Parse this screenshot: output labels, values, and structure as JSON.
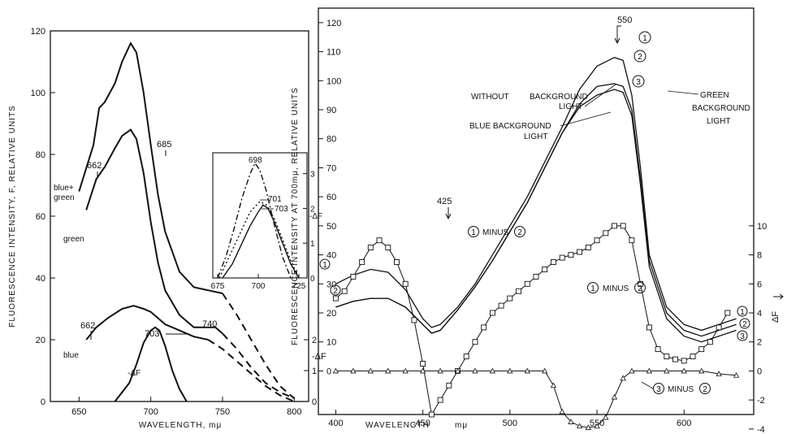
{
  "chart_data": [
    {
      "type": "line",
      "xlabel": "WAVELENGTH, mμ",
      "ylabel": "FLUORESCENCE INTENSITY, F, RELATIVE UNITS",
      "y2label": "-ΔF",
      "xlim": [
        630,
        810
      ],
      "ylim": [
        0,
        120
      ],
      "xticks": [
        650,
        700,
        750,
        800
      ],
      "yticks": [
        0,
        20,
        40,
        60,
        80,
        100,
        120
      ],
      "y2ticks": [
        0,
        1,
        2
      ],
      "series": [
        {
          "name": "blue+green",
          "style": "solid",
          "x": [
            650,
            660,
            664,
            668,
            675,
            680,
            686,
            690,
            695,
            700,
            705,
            710,
            720,
            730,
            740,
            750
          ],
          "y": [
            68,
            83,
            95,
            97,
            103,
            110,
            116,
            113,
            100,
            83,
            67,
            55,
            42,
            37,
            36,
            35
          ]
        },
        {
          "name": "blue+green",
          "style": "dashed",
          "x": [
            750,
            760,
            770,
            780,
            790,
            800
          ],
          "y": [
            35,
            28,
            20,
            12,
            5,
            1
          ]
        },
        {
          "name": "green",
          "style": "solid",
          "x": [
            655,
            662,
            668,
            675,
            680,
            686,
            690,
            695,
            700,
            705,
            710,
            720,
            730,
            740,
            745,
            750
          ],
          "y": [
            62,
            72,
            76,
            82,
            86,
            88,
            85,
            74,
            58,
            45,
            36,
            28,
            24,
            24,
            24,
            22
          ]
        },
        {
          "name": "green",
          "style": "dashed",
          "x": [
            750,
            760,
            770,
            780,
            790,
            800
          ],
          "y": [
            22,
            17,
            11,
            6,
            3,
            1
          ]
        },
        {
          "name": "blue",
          "style": "solid",
          "x": [
            655,
            662,
            670,
            680,
            688,
            695,
            700,
            705,
            710,
            720,
            730,
            740
          ],
          "y": [
            20,
            24,
            27,
            30,
            31,
            30,
            29,
            27,
            25,
            23,
            21,
            20
          ]
        },
        {
          "name": "blue",
          "style": "dashed",
          "x": [
            740,
            750,
            760,
            770,
            780,
            790,
            800
          ],
          "y": [
            20,
            17,
            13,
            9,
            5,
            2,
            0
          ]
        },
        {
          "name": "-ΔF",
          "axis": "y2",
          "style": "solid",
          "x": [
            675,
            685,
            690,
            695,
            700,
            703,
            706,
            710,
            715,
            720,
            725
          ],
          "y": [
            0,
            0.6,
            1.2,
            1.9,
            2.3,
            2.4,
            2.3,
            1.8,
            1.0,
            0.4,
            0
          ]
        }
      ],
      "annotations": [
        "662",
        "685",
        "740",
        "662",
        "703",
        "blue+ green",
        "green",
        "blue",
        "-ΔF"
      ],
      "inset": {
        "type": "line",
        "xlim": [
          672,
          730
        ],
        "ylim": [
          0,
          3.6
        ],
        "xticks": [
          675,
          700,
          725
        ],
        "yticks": [
          0,
          1,
          2,
          3
        ],
        "ylabel": "-ΔF",
        "series": [
          {
            "name": "698",
            "style": "dashdot",
            "x": [
              675,
              680,
              685,
              690,
              695,
              698,
              701,
              705,
              710,
              715,
              720
            ],
            "y": [
              0,
              0.6,
              1.4,
              2.3,
              3.0,
              3.3,
              3.1,
              2.5,
              1.5,
              0.6,
              0
            ]
          },
          {
            "name": "701",
            "style": "dotted",
            "x": [
              676,
              680,
              685,
              690,
              695,
              701,
              705,
              710,
              715,
              720,
              724
            ],
            "y": [
              0,
              0.4,
              0.9,
              1.4,
              1.9,
              2.2,
              2.1,
              1.7,
              1.1,
              0.5,
              0.1
            ]
          },
          {
            "name": "703",
            "style": "solid",
            "x": [
              678,
              684,
              690,
              695,
              700,
              703,
              706,
              710,
              715,
              720,
              725
            ],
            "y": [
              0,
              0.4,
              1.0,
              1.5,
              1.9,
              2.1,
              2.0,
              1.6,
              1.0,
              0.4,
              0
            ]
          }
        ],
        "annotations": [
          "698",
          "701",
          "703"
        ]
      }
    },
    {
      "type": "line",
      "xlabel": "WAVELENGTH",
      "xlabel_unit": "mμ",
      "ylabel": "FLUORESCENCE INTENSITY AT 700mμ, RELATIVE UNITS",
      "y2label": "ΔF",
      "xlim": [
        390,
        640
      ],
      "ylim": [
        -15,
        125
      ],
      "xticks": [
        400,
        450,
        500,
        550,
        600
      ],
      "yticks": [
        0,
        10,
        20,
        30,
        40,
        50,
        60,
        70,
        80,
        90,
        100,
        110,
        120
      ],
      "y2ticks": [
        -4,
        -2,
        0,
        2,
        4,
        6,
        8,
        10
      ],
      "series": [
        {
          "name": "1",
          "label": "WITHOUT BACKGROUND LIGHT",
          "x": [
            400,
            410,
            420,
            430,
            440,
            450,
            455,
            460,
            470,
            480,
            490,
            500,
            510,
            520,
            530,
            540,
            550,
            560,
            565,
            570,
            575,
            580,
            590,
            600,
            610,
            620,
            630
          ],
          "y": [
            30,
            33,
            35,
            34,
            28,
            18,
            15,
            16,
            22,
            30,
            40,
            50,
            60,
            72,
            84,
            97,
            105,
            108,
            107,
            95,
            70,
            40,
            22,
            16,
            14,
            16,
            18
          ]
        },
        {
          "name": "2",
          "label": "GREEN BACKGROUND LIGHT",
          "x": [
            400,
            410,
            420,
            430,
            440,
            450,
            455,
            460,
            470,
            480,
            490,
            500,
            510,
            520,
            530,
            540,
            550,
            560,
            565,
            570,
            575,
            580,
            590,
            600,
            610,
            620,
            630
          ],
          "y": [
            22,
            24,
            25,
            25,
            22,
            16,
            13,
            14,
            21,
            29,
            38,
            48,
            58,
            70,
            82,
            92,
            98,
            99,
            98,
            90,
            66,
            38,
            20,
            14,
            12,
            14,
            16
          ]
        },
        {
          "name": "3",
          "label": "BLUE BACKGROUND LIGHT",
          "x": [
            400,
            410,
            420,
            430,
            440,
            450,
            455,
            460,
            470,
            480,
            490,
            500,
            510,
            520,
            530,
            540,
            550,
            560,
            565,
            570,
            575,
            580,
            590,
            600,
            610,
            620,
            630
          ],
          "y": [
            22,
            24,
            25,
            25,
            22,
            16,
            13,
            14,
            21,
            29,
            38,
            48,
            58,
            70,
            82,
            91,
            95,
            97,
            96,
            88,
            64,
            36,
            18,
            12,
            10,
            12,
            14
          ]
        },
        {
          "name": "1 MINUS 2",
          "axis": "y2",
          "marker": "square",
          "x": [
            400,
            405,
            410,
            415,
            420,
            425,
            430,
            435,
            440,
            445,
            450,
            455,
            460,
            465,
            470,
            475,
            480,
            485,
            490,
            495,
            500,
            505,
            510,
            515,
            520,
            525,
            530,
            535,
            540,
            545,
            550,
            555,
            560,
            565,
            570,
            575,
            580,
            585,
            590,
            595,
            600,
            605,
            610,
            615,
            620,
            625
          ],
          "y": [
            5,
            5.5,
            6.5,
            7.5,
            8.5,
            9,
            8.5,
            7.5,
            6,
            3.5,
            0.5,
            -3,
            -2,
            -1,
            0,
            1,
            2,
            3,
            4,
            4.5,
            5,
            5.5,
            6,
            6.5,
            7,
            7.5,
            7.8,
            8,
            8.2,
            8.5,
            9,
            9.5,
            10,
            10,
            9,
            6,
            3,
            1.5,
            1,
            0.8,
            0.7,
            1,
            1.5,
            2,
            3,
            4
          ]
        },
        {
          "name": "3 MINUS 2",
          "axis": "y2",
          "marker": "triangle",
          "x": [
            400,
            410,
            420,
            430,
            440,
            450,
            460,
            470,
            480,
            490,
            500,
            510,
            520,
            525,
            530,
            535,
            540,
            545,
            550,
            555,
            560,
            565,
            570,
            580,
            590,
            600,
            610,
            620,
            630
          ],
          "y": [
            0,
            0,
            0,
            0,
            0,
            0,
            0,
            0,
            0,
            0,
            0,
            0,
            0,
            -1,
            -2.8,
            -3.5,
            -3.8,
            -3.9,
            -3.8,
            -3.2,
            -1.8,
            -0.5,
            0,
            0,
            0,
            0,
            0,
            -0.2,
            -0.3
          ]
        }
      ],
      "annotations": [
        "550",
        "1",
        "2",
        "3",
        "WITHOUT BACKGROUND LIGHT",
        "GREEN BACKGROUND LIGHT",
        "BLUE BACKGROUND LIGHT",
        "425",
        "1 MINUS 2",
        "1 MINUS 2",
        "3 MINUS 2"
      ]
    }
  ],
  "text": {
    "l_ylabel": "FLUORESCENCE INTENSITY, F, RELATIVE UNITS",
    "l_xlabel": "WAVELENGTH, mμ",
    "l_y2label": "-ΔF",
    "l_ann_662a": "662",
    "l_ann_685": "685",
    "l_ann_740": "740",
    "l_ann_662b": "662",
    "l_ann_703": "703",
    "l_lbl_bluegreen1": "blue+",
    "l_lbl_bluegreen2": "green",
    "l_lbl_green": "green",
    "l_lbl_blue": "blue",
    "l_lbl_df": "-ΔF",
    "inset_698": "698",
    "inset_701": "701",
    "inset_703": "703",
    "inset_y2label": "-ΔF",
    "r_ylabel": "FLUORESCENCE INTENSITY AT 700mμ, RELATIVE UNITS",
    "r_xlabel": "WAVELENGTH",
    "r_xunit": "mμ",
    "r_y2label": "ΔF",
    "r_ann_550": "550",
    "r_ann_425": "425",
    "r_without1": "WITHOUT",
    "r_without2": "BACKGROUND",
    "r_without3": "LIGHT",
    "r_green1": "GREEN",
    "r_green2": "BACKGROUND",
    "r_green3": "LIGHT",
    "r_blue1": "BLUE BACKGROUND",
    "r_blue2": "LIGHT",
    "r_minus12a": "MINUS",
    "r_minus12b": "MINUS",
    "r_minus32": "MINUS",
    "c1": "1",
    "c2": "2",
    "c3": "3"
  }
}
